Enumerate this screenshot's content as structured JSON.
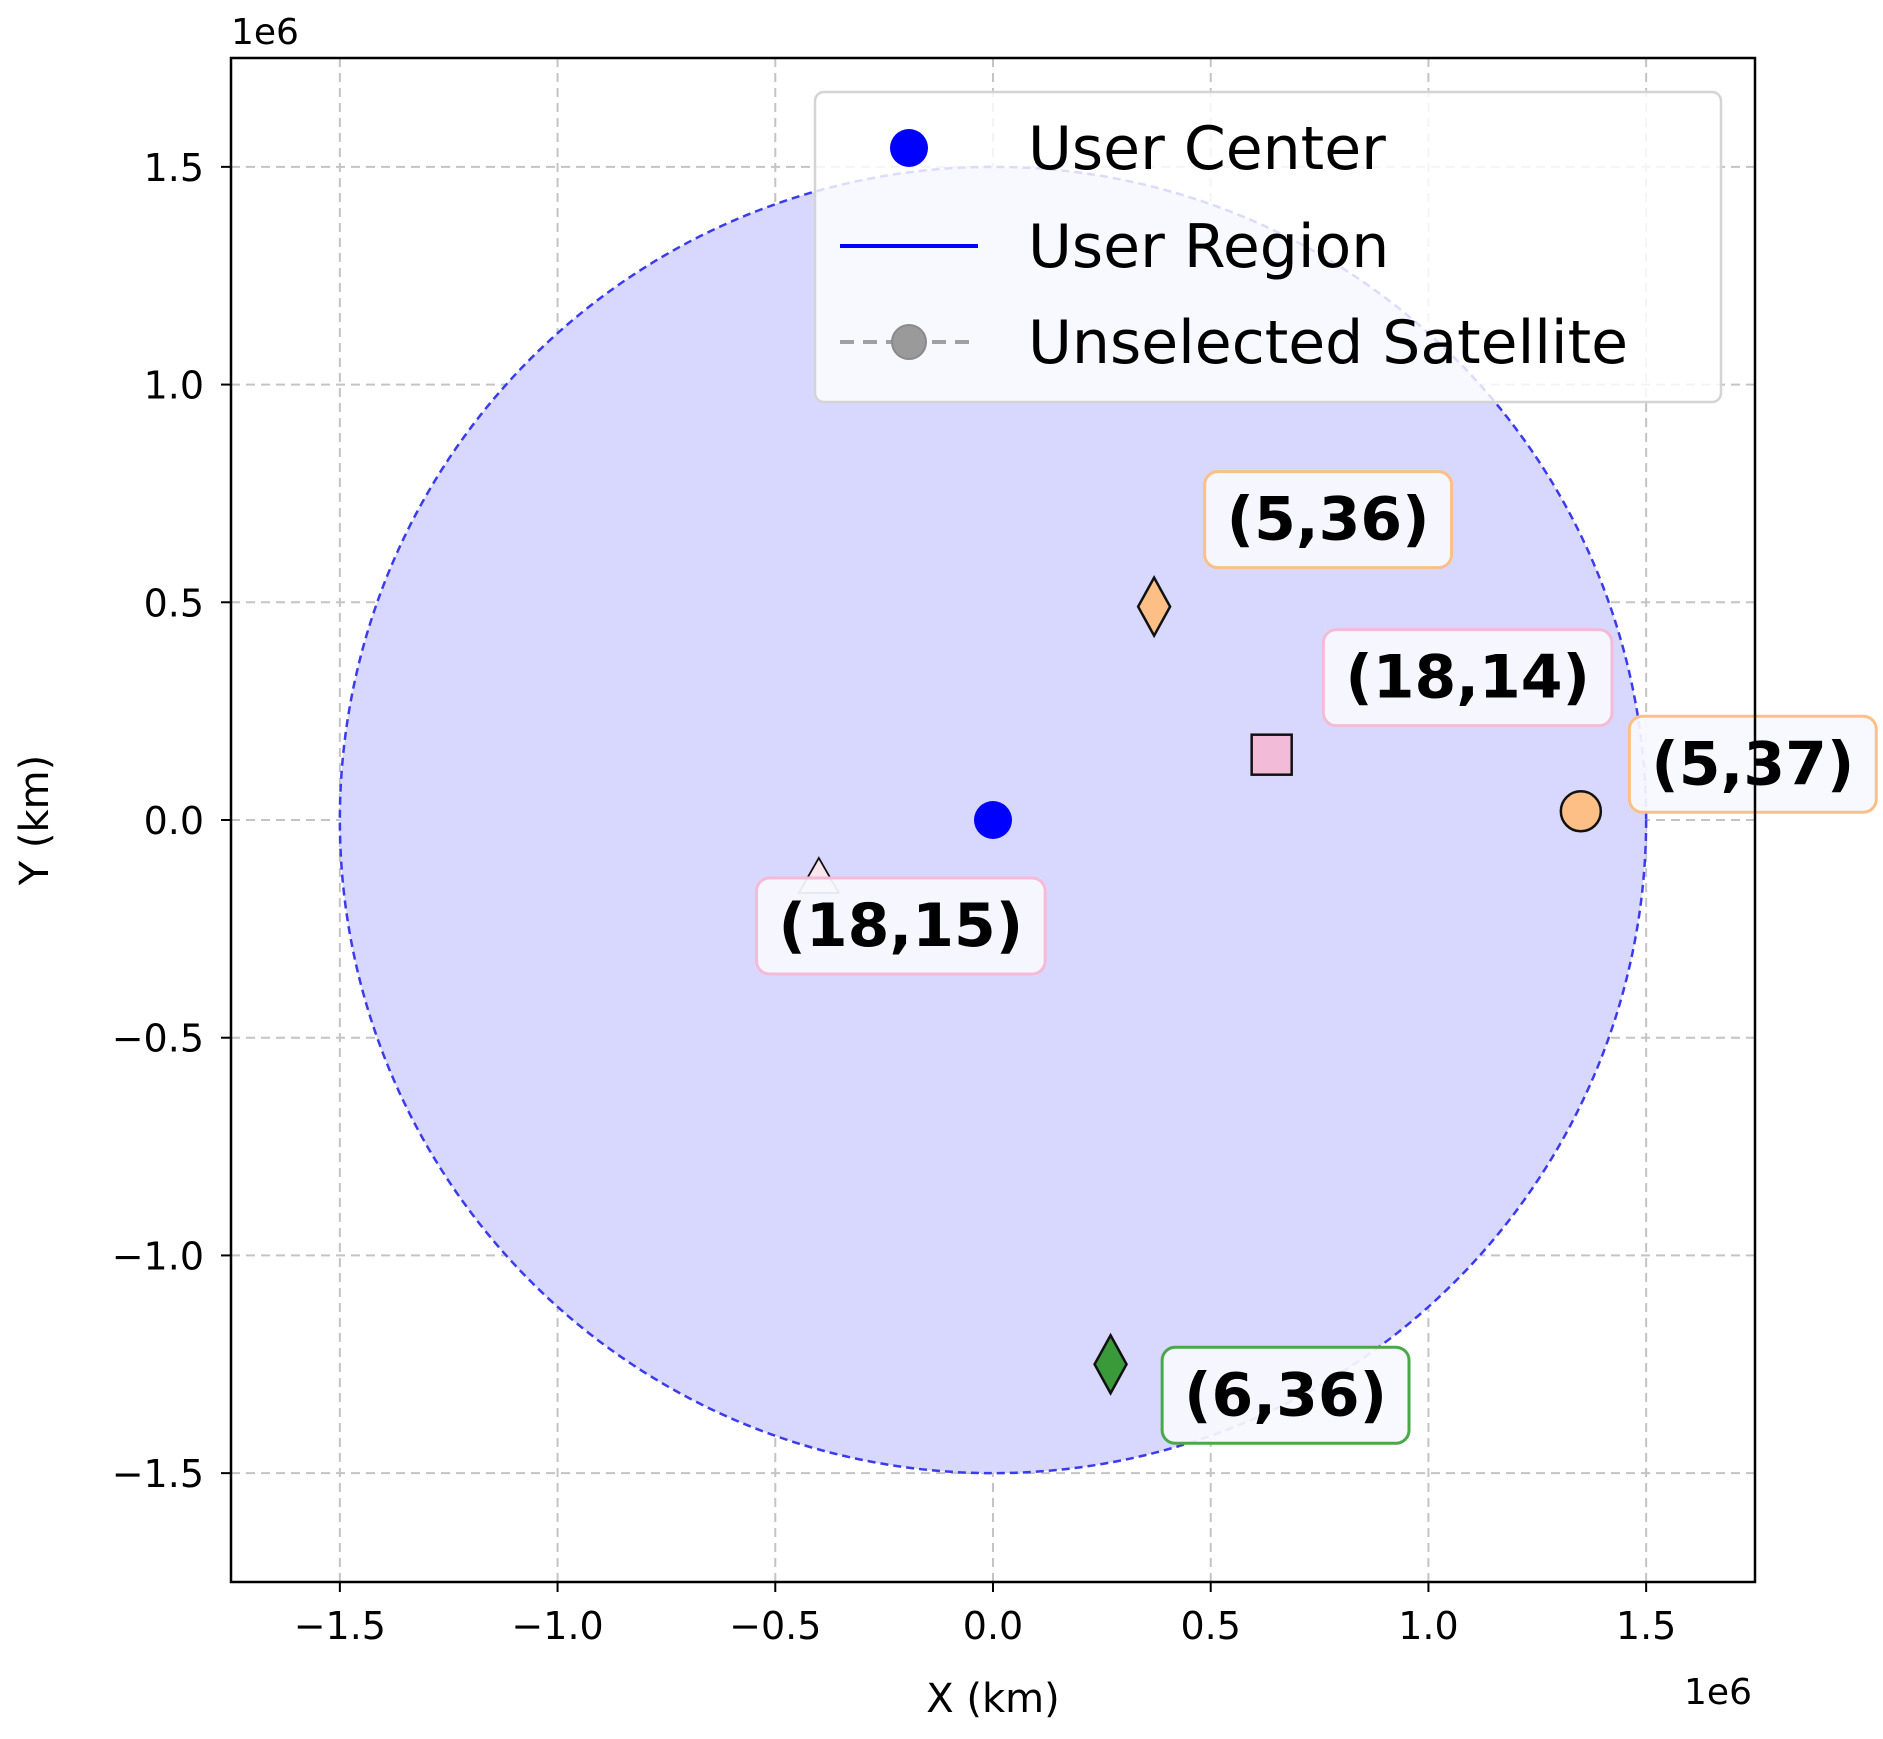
{
  "chart_data": {
    "type": "scatter",
    "xlabel": "X (km)",
    "ylabel": "Y (km)",
    "x_offset_text": "1e6",
    "y_offset_text": "1e6",
    "xlim": [
      -1.75,
      1.75
    ],
    "ylim": [
      -1.75,
      1.75
    ],
    "x_ticks": [
      -1.5,
      -1.0,
      -0.5,
      0.0,
      0.5,
      1.0,
      1.5
    ],
    "y_ticks": [
      -1.5,
      -1.0,
      -0.5,
      0.0,
      0.5,
      1.0,
      1.5
    ],
    "x_tick_labels": [
      "−1.5",
      "−1.0",
      "−0.5",
      "0.0",
      "0.5",
      "1.0",
      "1.5"
    ],
    "y_tick_labels": [
      "−1.5",
      "−1.0",
      "−0.5",
      "0.0",
      "0.5",
      "1.0",
      "1.5"
    ],
    "grid": true,
    "legend_placement": "top-right",
    "legend": [
      {
        "label": "User Center",
        "marker": "circle",
        "color": "#0000ff"
      },
      {
        "label": "User Region",
        "marker": "line",
        "color": "#0000ff"
      },
      {
        "label": "Unselected Satellite",
        "marker": "dashed-circle",
        "color": "#a0a0a0"
      }
    ],
    "user_center": {
      "x": 0.0,
      "y": 0.0,
      "color": "#0000ff"
    },
    "user_region": {
      "center_x": 0.0,
      "center_y": 0.0,
      "radius": 1.5,
      "fill": "#d8d8ff",
      "edge": "#3a3aee"
    },
    "satellites": [
      {
        "label": "(5,36)",
        "x": 0.37,
        "y": 0.49,
        "marker": "diamond",
        "color": "#fdbf85",
        "box_color": "#fdbf85"
      },
      {
        "label": "(18,14)",
        "x": 0.64,
        "y": 0.15,
        "marker": "square",
        "color": "#f2bcd8",
        "box_color": "#f5bad6"
      },
      {
        "label": "(5,37)",
        "x": 1.35,
        "y": 0.02,
        "marker": "circle",
        "color": "#fdbf85",
        "box_color": "#fdbf85"
      },
      {
        "label": "(18,15)",
        "x": -0.4,
        "y": -0.14,
        "marker": "triangle",
        "color": "#f7e6ee",
        "box_color": "#f5bad6"
      },
      {
        "label": "(6,36)",
        "x": 0.27,
        "y": -1.25,
        "marker": "diamond",
        "color": "#3a9a3a",
        "box_color": "#4aa84a"
      }
    ]
  }
}
